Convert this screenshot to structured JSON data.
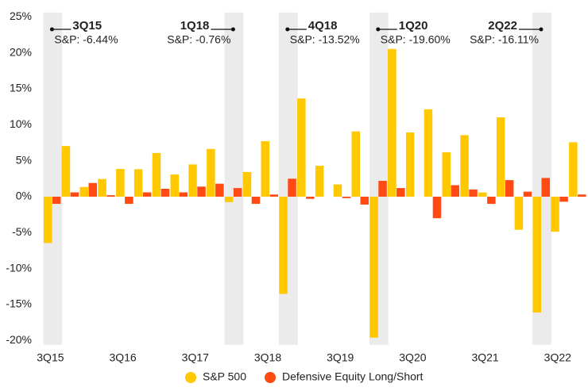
{
  "chart_data": {
    "type": "bar",
    "categories": [
      "3Q15",
      null,
      null,
      null,
      "3Q16",
      null,
      null,
      null,
      "3Q17",
      null,
      null,
      null,
      "3Q18",
      null,
      null,
      null,
      "3Q19",
      null,
      null,
      null,
      "3Q20",
      null,
      null,
      null,
      "3Q21",
      null,
      null,
      null,
      "3Q22",
      null
    ],
    "series": [
      {
        "name": "S&P 500",
        "color": "#ffc800",
        "values": [
          -6.44,
          7.04,
          1.35,
          2.46,
          3.85,
          3.82,
          6.07,
          3.09,
          4.48,
          6.64,
          -0.76,
          3.43,
          7.71,
          -13.52,
          13.65,
          4.3,
          1.7,
          9.07,
          -19.6,
          20.54,
          8.93,
          12.15,
          6.17,
          8.55,
          0.58,
          11.03,
          -4.6,
          -16.11,
          -4.88,
          7.56
        ]
      },
      {
        "name": "Defensive Equity Long/Short",
        "color": "#ff4a14",
        "values": [
          -1.0,
          0.6,
          1.9,
          0.2,
          -1.0,
          0.6,
          1.1,
          0.6,
          1.4,
          1.8,
          1.2,
          -1.0,
          0.3,
          2.5,
          -0.3,
          0,
          -0.2,
          -1.1,
          2.2,
          1.2,
          0,
          -3.0,
          1.6,
          1.0,
          -1.0,
          2.3,
          0.7,
          2.6,
          -0.7,
          0.3
        ]
      }
    ],
    "ylim": [
      -20.6,
      25.6
    ],
    "yticks": [
      {
        "value": -20,
        "label": "-20%"
      },
      {
        "value": -15,
        "label": "-15%"
      },
      {
        "value": -10,
        "label": "-10%"
      },
      {
        "value": -5,
        "label": "-5%"
      },
      {
        "value": 0,
        "label": "0%"
      },
      {
        "value": 5,
        "label": "5%"
      },
      {
        "value": 10,
        "label": "10%"
      },
      {
        "value": 15,
        "label": "15%"
      },
      {
        "value": 20,
        "label": "20%"
      },
      {
        "value": 25,
        "label": "25%"
      }
    ],
    "annotations": [
      {
        "index": 0,
        "label": "3Q15",
        "text": "S&P: -6.44%"
      },
      {
        "index": 10,
        "label": "1Q18",
        "text": "S&P: -0.76%"
      },
      {
        "index": 13,
        "label": "4Q18",
        "text": "S&P: -13.52%"
      },
      {
        "index": 18,
        "label": "1Q20",
        "text": "S&P: -19.60%"
      },
      {
        "index": 27,
        "label": "2Q22",
        "text": "S&P: -16.11%"
      }
    ]
  }
}
